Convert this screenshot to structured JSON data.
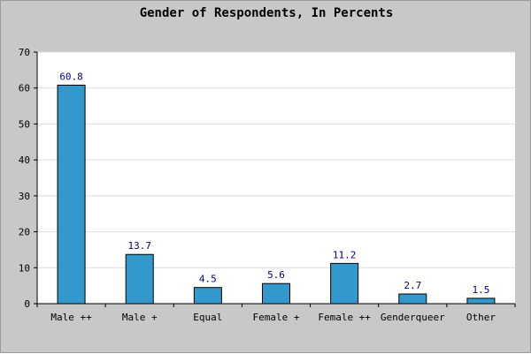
{
  "chart_data": {
    "type": "bar",
    "title": "Gender of Respondents, In Percents",
    "xlabel": "",
    "ylabel": "",
    "categories": [
      "Male ++",
      "Male +",
      "Equal",
      "Female +",
      "Female ++",
      "Genderqueer",
      "Other"
    ],
    "values": [
      60.8,
      13.7,
      4.5,
      5.6,
      11.2,
      2.7,
      1.5
    ],
    "value_labels": [
      "60.8",
      "13.7",
      "4.5",
      "5.6",
      "11.2",
      "2.7",
      "1.5"
    ],
    "ylim": [
      0,
      70
    ],
    "yticks": [
      0,
      10,
      20,
      30,
      40,
      50,
      60,
      70
    ],
    "grid": true,
    "legend": "none",
    "colors": {
      "bar": "#3399cc",
      "bar_outline": "#000000",
      "plot_background": "#ffffff",
      "page_background": "#c8c8c8",
      "grid": "#dddddd",
      "value_label": "#000080"
    }
  }
}
